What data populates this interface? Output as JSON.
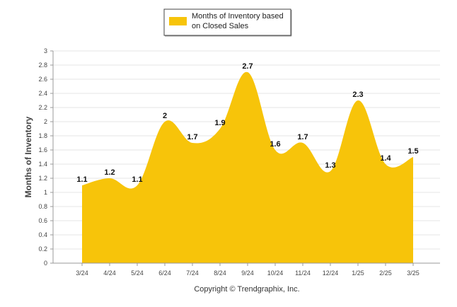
{
  "chart_data": {
    "type": "area",
    "title": "",
    "xlabel": "",
    "ylabel": "Months of Inventory",
    "categories": [
      "3/24",
      "4/24",
      "5/24",
      "6/24",
      "7/24",
      "8/24",
      "9/24",
      "10/24",
      "11/24",
      "12/24",
      "1/25",
      "2/25",
      "3/25"
    ],
    "series": [
      {
        "name": "Months of Inventory based on Closed Sales",
        "values": [
          1.1,
          1.2,
          1.1,
          2,
          1.7,
          1.9,
          2.7,
          1.6,
          1.7,
          1.3,
          2.3,
          1.4,
          1.5
        ],
        "labels": [
          "1.1",
          "1.2",
          "1.1",
          "2",
          "1.7",
          "1.9",
          "2.7",
          "1.6",
          "1.7",
          "1.3",
          "2.3",
          "1.4",
          "1.5"
        ],
        "color": "#F7C40A"
      }
    ],
    "ylim": [
      0,
      3
    ],
    "yticks": [
      "0",
      "0.2",
      "0.4",
      "0.6",
      "0.8",
      "1",
      "1.2",
      "1.4",
      "1.6",
      "1.8",
      "2",
      "2.2",
      "2.4",
      "2.6",
      "2.8",
      "3"
    ],
    "grid": true,
    "legend": {
      "position": "top-center",
      "lines": [
        "Months of Inventory based",
        "on Closed Sales"
      ]
    }
  },
  "footer": {
    "copyright": "Copyright © Trendgraphix, Inc."
  }
}
